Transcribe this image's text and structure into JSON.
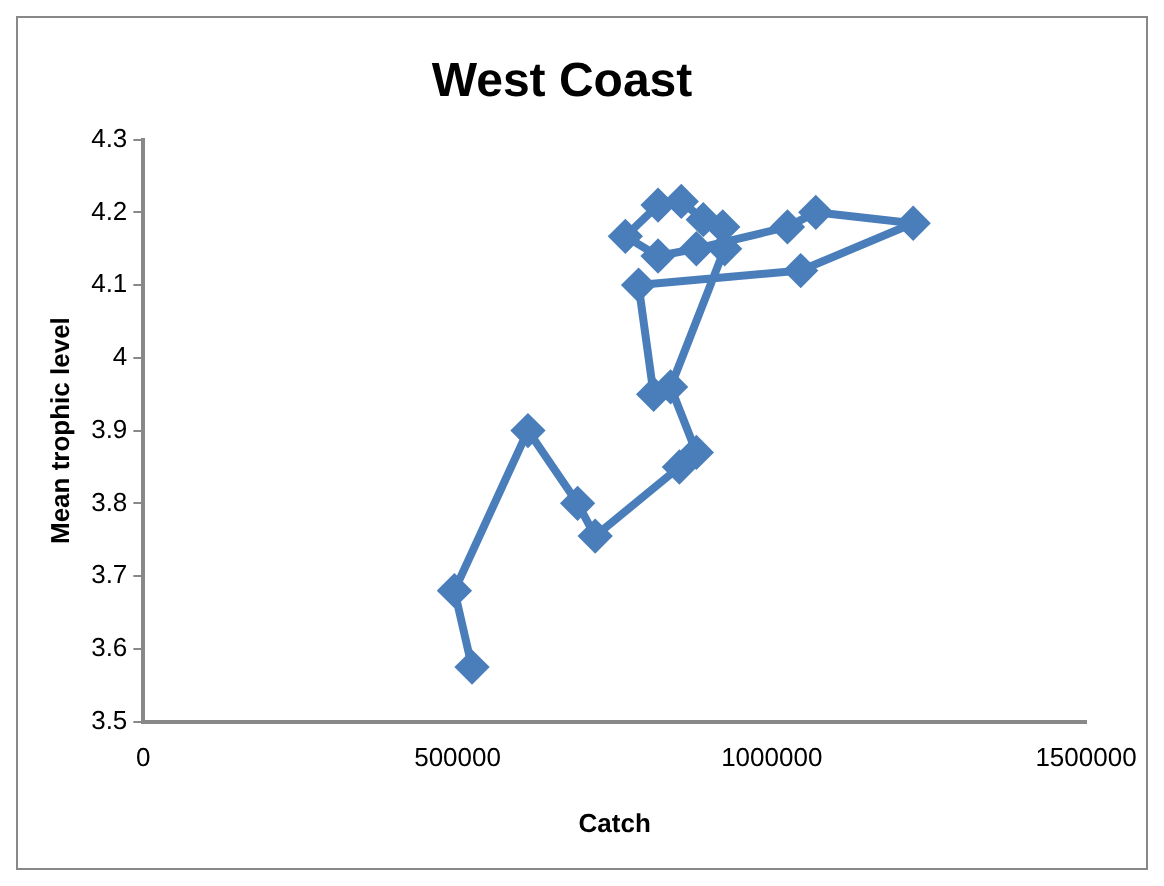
{
  "chart_data": {
    "type": "line",
    "title": "West Coast",
    "xlabel": "Catch",
    "ylabel": "Mean trophic level",
    "x": [
      523000,
      495000,
      612000,
      691000,
      719000,
      853000,
      880000,
      839000,
      925000,
      922000,
      891000,
      856000,
      819000,
      767000,
      819000,
      880000,
      1025000,
      1070000,
      1225000,
      1046000,
      788000,
      812000
    ],
    "series": [
      {
        "color": "#4a7ebb",
        "values": [
          3.575,
          3.68,
          3.9,
          3.8,
          3.755,
          3.85,
          3.87,
          3.96,
          4.15,
          4.18,
          4.19,
          4.215,
          4.21,
          4.167,
          4.14,
          4.15,
          4.18,
          4.2,
          4.185,
          4.12,
          4.1,
          3.95
        ]
      }
    ],
    "xlim": [
      0,
      1500000
    ],
    "xticks": [
      0,
      500000,
      1000000,
      1500000
    ],
    "ylim": [
      3.5,
      4.3
    ],
    "yticks": [
      3.5,
      3.6,
      3.7,
      3.8,
      3.9,
      4,
      4.1,
      4.2,
      4.3
    ],
    "grid": false,
    "legend": false,
    "marker": "diamond",
    "line_style": "solid"
  }
}
